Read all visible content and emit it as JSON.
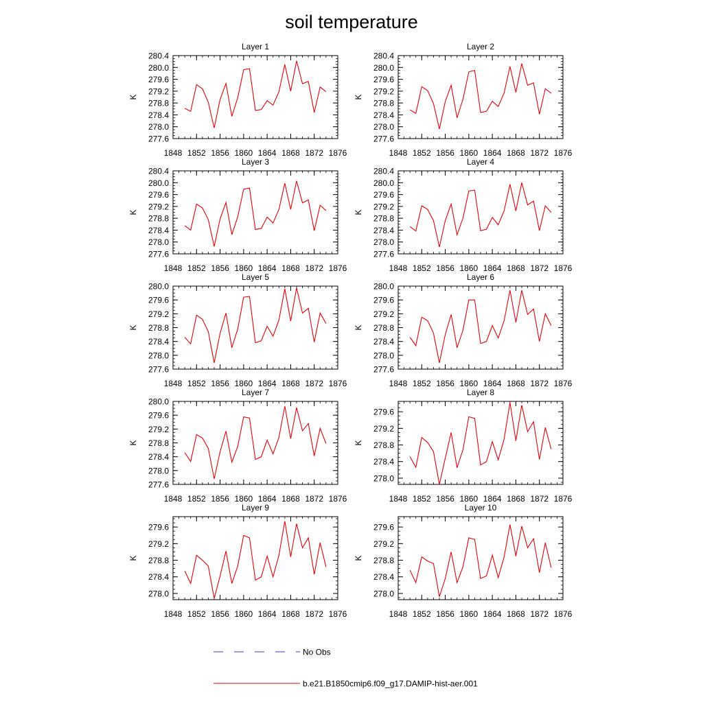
{
  "title": "soil temperature",
  "line_color": "#e8000b",
  "obs_color": "#3b3bd6",
  "legend": [
    {
      "label": "No Obs",
      "style": "dashed"
    },
    {
      "label": "b.e21.B1850cmip6.f09_g17.DAMIP-hist-aer.001",
      "style": "solid"
    }
  ],
  "chart_data": [
    {
      "type": "line",
      "title": "Layer 1",
      "ylabel": "K",
      "xlim": [
        1848,
        1876
      ],
      "ylim": [
        277.6,
        280.4
      ],
      "xticks": [
        1848,
        1852,
        1856,
        1860,
        1864,
        1868,
        1872,
        1876
      ],
      "yticks": [
        "277.6",
        "278.0",
        "278.4",
        "278.8",
        "279.2",
        "279.6",
        "280.0",
        "280.4"
      ],
      "series": [
        {
          "x": [
            1850,
            1851,
            1852,
            1853,
            1854,
            1855,
            1856,
            1857,
            1858,
            1859,
            1860,
            1861,
            1862,
            1863,
            1864,
            1865,
            1866,
            1867,
            1868,
            1869,
            1870,
            1871,
            1872,
            1873,
            1874
          ],
          "values": [
            278.62,
            278.52,
            279.42,
            279.28,
            278.82,
            277.96,
            278.92,
            279.46,
            278.35,
            278.98,
            279.92,
            279.96,
            278.55,
            278.58,
            278.88,
            278.73,
            279.18,
            280.1,
            279.2,
            280.22,
            279.45,
            279.53,
            278.48,
            279.34,
            279.18
          ]
        }
      ]
    },
    {
      "type": "line",
      "title": "Layer 2",
      "ylabel": "K",
      "xlim": [
        1848,
        1876
      ],
      "ylim": [
        277.6,
        280.4
      ],
      "xticks": [
        1848,
        1852,
        1856,
        1860,
        1864,
        1868,
        1872,
        1876
      ],
      "yticks": [
        "277.6",
        "278.0",
        "278.4",
        "278.8",
        "279.2",
        "279.6",
        "280.0",
        "280.4"
      ],
      "series": [
        {
          "x": [
            1850,
            1851,
            1852,
            1853,
            1854,
            1855,
            1856,
            1857,
            1858,
            1859,
            1860,
            1861,
            1862,
            1863,
            1864,
            1865,
            1866,
            1867,
            1868,
            1869,
            1870,
            1871,
            1872,
            1873,
            1874
          ],
          "values": [
            278.57,
            278.45,
            279.35,
            279.22,
            278.78,
            277.92,
            278.85,
            279.4,
            278.3,
            278.92,
            279.85,
            279.9,
            278.48,
            278.52,
            278.86,
            278.68,
            279.14,
            280.03,
            279.16,
            280.13,
            279.4,
            279.48,
            278.42,
            279.28,
            279.13
          ]
        }
      ]
    },
    {
      "type": "line",
      "title": "Layer 3",
      "ylabel": "K",
      "xlim": [
        1848,
        1876
      ],
      "ylim": [
        277.6,
        280.4
      ],
      "xticks": [
        1848,
        1852,
        1856,
        1860,
        1864,
        1868,
        1872,
        1876
      ],
      "yticks": [
        "277.6",
        "278.0",
        "278.4",
        "278.8",
        "279.2",
        "279.6",
        "280.0",
        "280.4"
      ],
      "series": [
        {
          "x": [
            1850,
            1851,
            1852,
            1853,
            1854,
            1855,
            1856,
            1857,
            1858,
            1859,
            1860,
            1861,
            1862,
            1863,
            1864,
            1865,
            1866,
            1867,
            1868,
            1869,
            1870,
            1871,
            1872,
            1873,
            1874
          ],
          "values": [
            278.55,
            278.4,
            279.28,
            279.15,
            278.75,
            277.85,
            278.78,
            279.33,
            278.25,
            278.85,
            279.78,
            279.82,
            278.42,
            278.46,
            278.84,
            278.64,
            279.1,
            279.98,
            279.1,
            280.06,
            279.32,
            279.42,
            278.38,
            279.24,
            279.06
          ]
        }
      ]
    },
    {
      "type": "line",
      "title": "Layer 4",
      "ylabel": "K",
      "xlim": [
        1848,
        1876
      ],
      "ylim": [
        277.6,
        280.4
      ],
      "xticks": [
        1848,
        1852,
        1856,
        1860,
        1864,
        1868,
        1872,
        1876
      ],
      "yticks": [
        "277.6",
        "278.0",
        "278.4",
        "278.8",
        "279.2",
        "279.6",
        "280.0",
        "280.4"
      ],
      "series": [
        {
          "x": [
            1850,
            1851,
            1852,
            1853,
            1854,
            1855,
            1856,
            1857,
            1858,
            1859,
            1860,
            1861,
            1862,
            1863,
            1864,
            1865,
            1866,
            1867,
            1868,
            1869,
            1870,
            1871,
            1872,
            1873,
            1874
          ],
          "values": [
            278.52,
            278.37,
            279.22,
            279.1,
            278.72,
            277.83,
            278.72,
            279.28,
            278.24,
            278.8,
            279.72,
            279.75,
            278.38,
            278.43,
            278.83,
            278.58,
            279.05,
            279.95,
            279.05,
            280.0,
            279.25,
            279.38,
            278.38,
            279.22,
            279.0
          ]
        }
      ]
    },
    {
      "type": "line",
      "title": "Layer 5",
      "ylabel": "K",
      "xlim": [
        1848,
        1876
      ],
      "ylim": [
        277.6,
        280.0
      ],
      "xticks": [
        1848,
        1852,
        1856,
        1860,
        1864,
        1868,
        1872,
        1876
      ],
      "yticks": [
        "277.6",
        "278.0",
        "278.4",
        "278.8",
        "279.2",
        "279.6",
        "280.0"
      ],
      "series": [
        {
          "x": [
            1850,
            1851,
            1852,
            1853,
            1854,
            1855,
            1856,
            1857,
            1858,
            1859,
            1860,
            1861,
            1862,
            1863,
            1864,
            1865,
            1866,
            1867,
            1868,
            1869,
            1870,
            1871,
            1872,
            1873,
            1874
          ],
          "values": [
            278.52,
            278.33,
            279.16,
            279.04,
            278.68,
            277.78,
            278.64,
            279.22,
            278.22,
            278.76,
            279.68,
            279.7,
            278.36,
            278.42,
            278.84,
            278.55,
            279.02,
            279.92,
            278.99,
            279.95,
            279.22,
            279.36,
            278.38,
            279.22,
            278.92
          ]
        }
      ]
    },
    {
      "type": "line",
      "title": "Layer 6",
      "ylabel": "K",
      "xlim": [
        1848,
        1876
      ],
      "ylim": [
        277.6,
        280.0
      ],
      "xticks": [
        1848,
        1852,
        1856,
        1860,
        1864,
        1868,
        1872,
        1876
      ],
      "yticks": [
        "277.6",
        "278.0",
        "278.4",
        "278.8",
        "279.2",
        "279.6",
        "280.0"
      ],
      "series": [
        {
          "x": [
            1850,
            1851,
            1852,
            1853,
            1854,
            1855,
            1856,
            1857,
            1858,
            1859,
            1860,
            1861,
            1862,
            1863,
            1864,
            1865,
            1866,
            1867,
            1868,
            1869,
            1870,
            1871,
            1872,
            1873,
            1874
          ],
          "values": [
            278.52,
            278.28,
            279.1,
            279.0,
            278.64,
            277.78,
            278.6,
            279.18,
            278.22,
            278.72,
            279.6,
            279.6,
            278.34,
            278.4,
            278.86,
            278.5,
            279.0,
            279.88,
            278.95,
            279.88,
            279.18,
            279.34,
            278.4,
            279.2,
            278.86
          ]
        }
      ]
    },
    {
      "type": "line",
      "title": "Layer 7",
      "ylabel": "K",
      "xlim": [
        1848,
        1876
      ],
      "ylim": [
        277.6,
        280.0
      ],
      "xticks": [
        1848,
        1852,
        1856,
        1860,
        1864,
        1868,
        1872,
        1876
      ],
      "yticks": [
        "277.6",
        "278.0",
        "278.4",
        "278.8",
        "279.2",
        "279.6",
        "280.0"
      ],
      "series": [
        {
          "x": [
            1850,
            1851,
            1852,
            1853,
            1854,
            1855,
            1856,
            1857,
            1858,
            1859,
            1860,
            1861,
            1862,
            1863,
            1864,
            1865,
            1866,
            1867,
            1868,
            1869,
            1870,
            1871,
            1872,
            1873,
            1874
          ],
          "values": [
            278.52,
            278.26,
            279.04,
            278.94,
            278.64,
            277.76,
            278.54,
            279.14,
            278.24,
            278.7,
            279.55,
            279.52,
            278.32,
            278.4,
            278.88,
            278.48,
            278.96,
            279.86,
            278.92,
            279.82,
            279.15,
            279.36,
            278.42,
            279.22,
            278.78
          ]
        }
      ]
    },
    {
      "type": "line",
      "title": "Layer 8",
      "ylabel": "K",
      "xlim": [
        1848,
        1876
      ],
      "ylim": [
        277.85,
        279.85
      ],
      "xticks": [
        1848,
        1852,
        1856,
        1860,
        1864,
        1868,
        1872,
        1876
      ],
      "yticks": [
        "278.0",
        "278.4",
        "278.8",
        "279.2",
        "279.6"
      ],
      "series": [
        {
          "x": [
            1850,
            1851,
            1852,
            1853,
            1854,
            1855,
            1856,
            1857,
            1858,
            1859,
            1860,
            1861,
            1862,
            1863,
            1864,
            1865,
            1866,
            1867,
            1868,
            1869,
            1870,
            1871,
            1872,
            1873,
            1874
          ],
          "values": [
            278.52,
            278.26,
            278.98,
            278.86,
            278.64,
            277.85,
            278.48,
            279.1,
            278.25,
            278.68,
            279.48,
            279.44,
            278.32,
            278.4,
            278.88,
            278.44,
            278.94,
            279.82,
            278.9,
            279.76,
            279.12,
            279.36,
            278.45,
            279.22,
            278.7
          ]
        }
      ]
    },
    {
      "type": "line",
      "title": "Layer 9",
      "ylabel": "K",
      "xlim": [
        1848,
        1876
      ],
      "ylim": [
        277.85,
        279.85
      ],
      "xticks": [
        1848,
        1852,
        1856,
        1860,
        1864,
        1868,
        1872,
        1876
      ],
      "yticks": [
        "278.0",
        "278.4",
        "278.8",
        "279.2",
        "279.6"
      ],
      "series": [
        {
          "x": [
            1850,
            1851,
            1852,
            1853,
            1854,
            1855,
            1856,
            1857,
            1858,
            1859,
            1860,
            1861,
            1862,
            1863,
            1864,
            1865,
            1866,
            1867,
            1868,
            1869,
            1870,
            1871,
            1872,
            1873,
            1874
          ],
          "values": [
            278.54,
            278.24,
            278.92,
            278.8,
            278.66,
            277.88,
            278.42,
            279.02,
            278.24,
            278.66,
            279.4,
            279.34,
            278.32,
            278.4,
            278.9,
            278.4,
            278.92,
            279.74,
            278.88,
            279.68,
            279.1,
            279.34,
            278.46,
            279.22,
            278.64
          ]
        }
      ]
    },
    {
      "type": "line",
      "title": "Layer 10",
      "ylabel": "K",
      "xlim": [
        1848,
        1876
      ],
      "ylim": [
        277.85,
        279.85
      ],
      "xticks": [
        1848,
        1852,
        1856,
        1860,
        1864,
        1868,
        1872,
        1876
      ],
      "yticks": [
        "278.0",
        "278.4",
        "278.8",
        "279.2",
        "279.6"
      ],
      "series": [
        {
          "x": [
            1850,
            1851,
            1852,
            1853,
            1854,
            1855,
            1856,
            1857,
            1858,
            1859,
            1860,
            1861,
            1862,
            1863,
            1864,
            1865,
            1866,
            1867,
            1868,
            1869,
            1870,
            1871,
            1872,
            1873,
            1874
          ],
          "values": [
            278.56,
            278.26,
            278.88,
            278.78,
            278.72,
            277.92,
            278.36,
            279.0,
            278.26,
            278.64,
            279.34,
            279.3,
            278.36,
            278.42,
            278.92,
            278.38,
            278.88,
            279.66,
            278.9,
            279.62,
            279.1,
            279.32,
            278.5,
            279.22,
            278.62
          ]
        }
      ]
    }
  ]
}
